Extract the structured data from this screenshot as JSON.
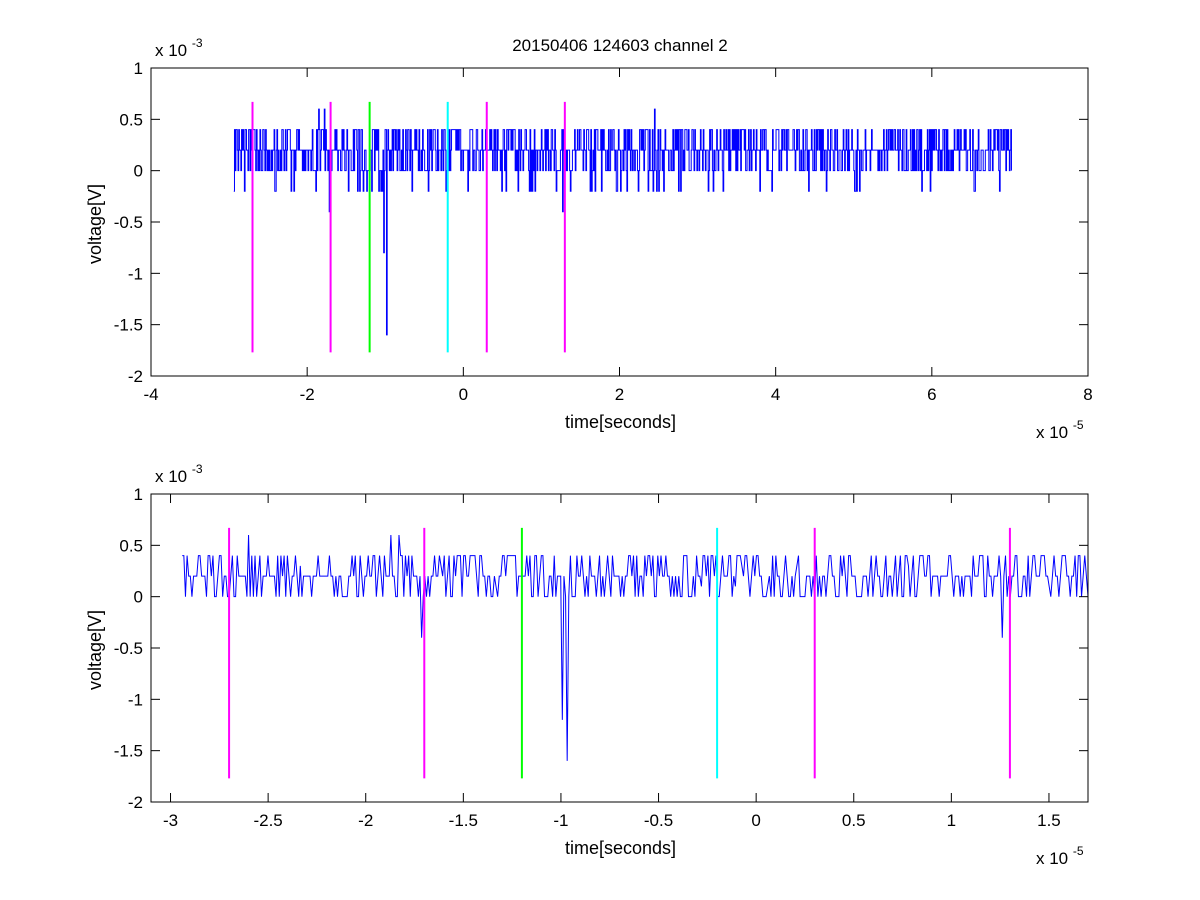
{
  "figure": {
    "title": "20150406 124603 channel 2"
  },
  "chart_data": [
    {
      "type": "line",
      "title": "20150406 124603 channel 2",
      "xlabel": "time[seconds]",
      "ylabel": "voltage[V]",
      "x_exponent_label": "x 10",
      "x_exponent": "-5",
      "y_exponent_label": "x 10",
      "y_exponent": "-3",
      "xlim": [
        -4,
        8
      ],
      "ylim": [
        -2,
        1
      ],
      "xticks": [
        -4,
        -2,
        0,
        2,
        4,
        6,
        8
      ],
      "xtick_labels": [
        "-4",
        "-2",
        "0",
        "2",
        "4",
        "6",
        "8"
      ],
      "yticks": [
        -2,
        -1.5,
        -1,
        -0.5,
        0,
        0.5,
        1
      ],
      "ytick_labels": [
        "-2",
        "-1.5",
        "-1",
        "-0.5",
        "0",
        "0.5",
        "1"
      ],
      "grid": false,
      "signal": {
        "color": "#0000ff",
        "x_start": -2.94,
        "x_end": 7.02,
        "baseline": 0.2,
        "noise_levels": [
          0,
          0.2,
          0.4
        ],
        "spikes": [
          {
            "x": -1.02,
            "y": -0.8
          },
          {
            "x": -0.98,
            "y": -1.6
          },
          {
            "x": -1.85,
            "y": 0.6
          },
          {
            "x": -1.78,
            "y": 0.6
          },
          {
            "x": 2.45,
            "y": 0.6
          },
          {
            "x": -1.72,
            "y": -0.4
          },
          {
            "x": 1.27,
            "y": -0.4
          }
        ]
      },
      "markers": [
        {
          "x": -2.7,
          "color": "#ff00ff"
        },
        {
          "x": -1.7,
          "color": "#ff00ff"
        },
        {
          "x": -1.2,
          "color": "#00ff00"
        },
        {
          "x": -0.2,
          "color": "#00ffff"
        },
        {
          "x": 0.3,
          "color": "#ff00ff"
        },
        {
          "x": 1.3,
          "color": "#ff00ff"
        }
      ],
      "marker_yrange": [
        -1.77,
        0.67
      ]
    },
    {
      "type": "line",
      "title": "",
      "xlabel": "time[seconds]",
      "ylabel": "voltage[V]",
      "x_exponent_label": "x 10",
      "x_exponent": "-5",
      "y_exponent_label": "x 10",
      "y_exponent": "-3",
      "xlim": [
        -3.1,
        1.7
      ],
      "ylim": [
        -2,
        1
      ],
      "xticks": [
        -3,
        -2.5,
        -2,
        -1.5,
        -1,
        -0.5,
        0,
        0.5,
        1,
        1.5
      ],
      "xtick_labels": [
        "-3",
        "-2.5",
        "-2",
        "-1.5",
        "-1",
        "-0.5",
        "0",
        "0.5",
        "1",
        "1.5"
      ],
      "yticks": [
        -2,
        -1.5,
        -1,
        -0.5,
        0,
        0.5,
        1
      ],
      "ytick_labels": [
        "-2",
        "-1.5",
        "-1",
        "-0.5",
        "0",
        "0.5",
        "1"
      ],
      "grid": false,
      "signal": {
        "color": "#0000ff",
        "x_start": -2.94,
        "x_end": 1.7,
        "baseline": 0.2,
        "noise_levels": [
          0,
          0.2,
          0.4
        ],
        "spikes": [
          {
            "x": -2.6,
            "y": 0.6
          },
          {
            "x": -1.87,
            "y": 0.6
          },
          {
            "x": -1.83,
            "y": 0.6
          },
          {
            "x": -1.71,
            "y": -0.4
          },
          {
            "x": -0.99,
            "y": -1.2
          },
          {
            "x": -0.97,
            "y": -1.6
          },
          {
            "x": 1.26,
            "y": -0.4
          }
        ]
      },
      "markers": [
        {
          "x": -2.7,
          "color": "#ff00ff"
        },
        {
          "x": -1.7,
          "color": "#ff00ff"
        },
        {
          "x": -1.2,
          "color": "#00ff00"
        },
        {
          "x": -0.2,
          "color": "#00ffff"
        },
        {
          "x": 0.3,
          "color": "#ff00ff"
        },
        {
          "x": 1.3,
          "color": "#ff00ff"
        }
      ],
      "marker_yrange": [
        -1.77,
        0.67
      ]
    }
  ]
}
